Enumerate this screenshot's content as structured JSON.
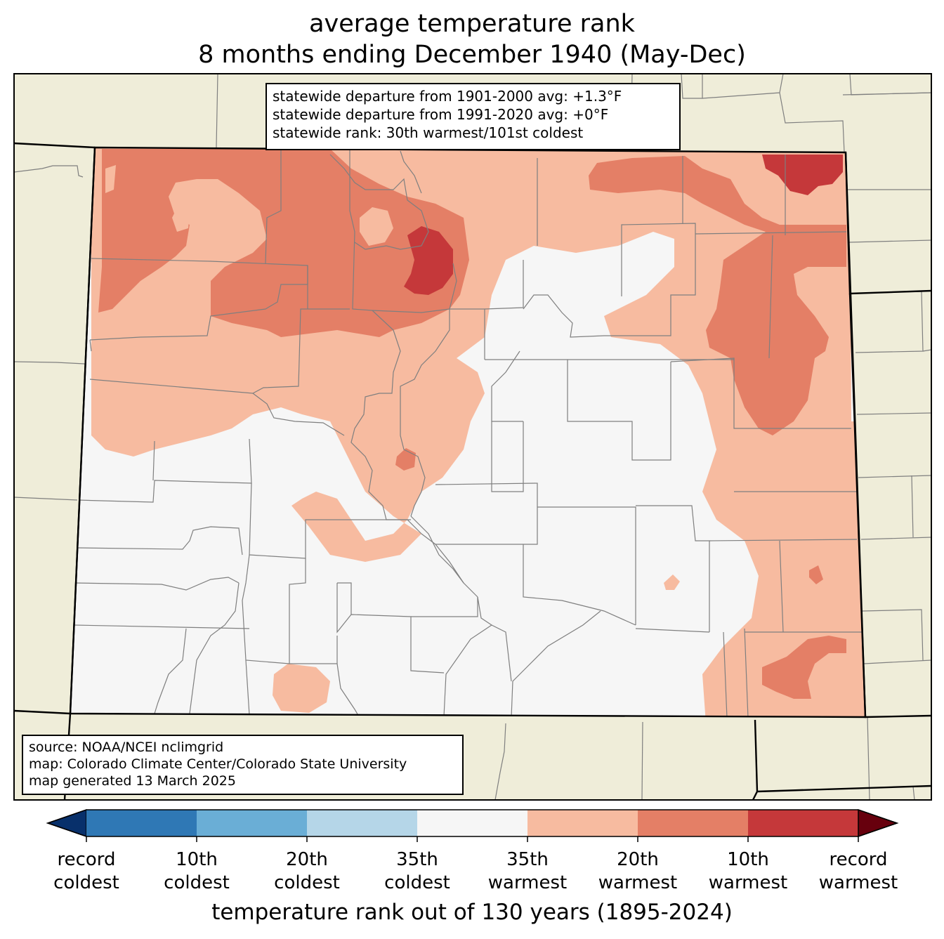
{
  "title": {
    "line1": "average temperature rank",
    "line2": "8 months ending December 1940 (May-Dec)"
  },
  "stats": {
    "departure_1901_2000": "statewide departure from 1901-2000 avg: +1.3°F",
    "departure_1991_2020": "statewide departure from 1991-2020 avg: +0°F",
    "rank": "statewide rank: 30th warmest/101st coldest"
  },
  "source": {
    "line1": "source: NOAA/NCEI nclimgrid",
    "line2": "map: Colorado Climate Center/Colorado State University",
    "line3": "map generated 13 March 2025"
  },
  "colorbar": {
    "axis_label": "temperature rank out of 130 years (1895-2024)",
    "ticks": [
      {
        "line1": "record",
        "line2": "coldest"
      },
      {
        "line1": "10th",
        "line2": "coldest"
      },
      {
        "line1": "20th",
        "line2": "coldest"
      },
      {
        "line1": "35th",
        "line2": "coldest"
      },
      {
        "line1": "35th",
        "line2": "warmest"
      },
      {
        "line1": "20th",
        "line2": "warmest"
      },
      {
        "line1": "10th",
        "line2": "warmest"
      },
      {
        "line1": "record",
        "line2": "warmest"
      }
    ],
    "colors": {
      "below_record_coldest": "#08306b",
      "record_to_10th_coldest": "#2f78b5",
      "10th_to_20th_coldest": "#6aaed6",
      "20th_to_35th_coldest": "#b5d6e8",
      "near_normal": "#f6f6f6",
      "35th_to_20th_warmest": "#f7bba0",
      "20th_to_10th_warmest": "#e47f66",
      "10th_to_record_warmest": "#c5383a",
      "above_record_warmest": "#67000d"
    }
  },
  "map_colors": {
    "background": "#efedd9",
    "state_border": "#000000",
    "county_border": "#7f7f7f"
  }
}
